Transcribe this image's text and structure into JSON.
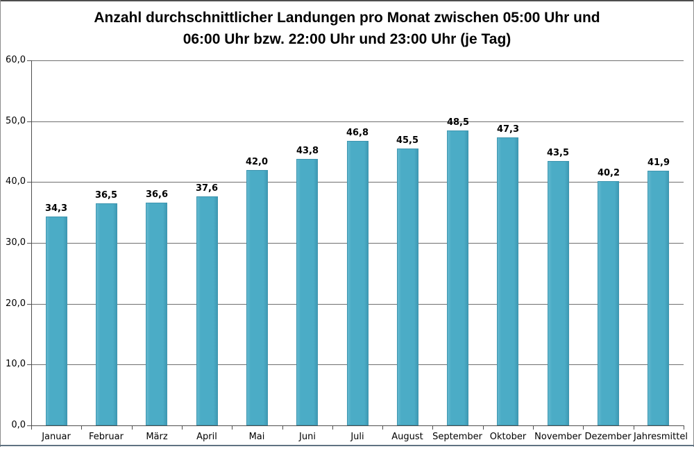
{
  "title": {
    "line1": "Anzahl durchschnittlicher Landungen pro Monat zwischen 05:00 Uhr und",
    "line2": "06:00 Uhr bzw. 22:00 Uhr und 23:00 Uhr (je Tag)"
  },
  "chart_data": {
    "type": "bar",
    "title": "Anzahl durchschnittlicher Landungen pro Monat zwischen 05:00 Uhr und 06:00 Uhr bzw. 22:00 Uhr und 23:00 Uhr (je Tag)",
    "categories": [
      "Januar",
      "Februar",
      "März",
      "April",
      "Mai",
      "Juni",
      "Juli",
      "August",
      "September",
      "Oktober",
      "November",
      "Dezember",
      "Jahresmittel"
    ],
    "values": [
      34.3,
      36.5,
      36.6,
      37.6,
      42.0,
      43.8,
      46.8,
      45.5,
      48.5,
      47.3,
      43.5,
      40.2,
      41.9
    ],
    "value_labels": [
      "34,3",
      "36,5",
      "36,6",
      "37,6",
      "42,0",
      "43,8",
      "46,8",
      "45,5",
      "48,5",
      "47,3",
      "43,5",
      "40,2",
      "41,9"
    ],
    "y_ticks": [
      {
        "value": 0,
        "label": "0,0"
      },
      {
        "value": 10,
        "label": "10,0"
      },
      {
        "value": 20,
        "label": "20,0"
      },
      {
        "value": 30,
        "label": "30,0"
      },
      {
        "value": 40,
        "label": "40,0"
      },
      {
        "value": 50,
        "label": "50,0"
      },
      {
        "value": 60,
        "label": "60,0"
      }
    ],
    "ylim": [
      0,
      60
    ],
    "xlabel": "",
    "ylabel": "",
    "grid": true,
    "legend": "none",
    "bar_color": "#4BACC6",
    "bar_border_color": "#3D95AF",
    "gridline_color": "#6E6E6E",
    "axis_color": "#4D4D4D"
  }
}
